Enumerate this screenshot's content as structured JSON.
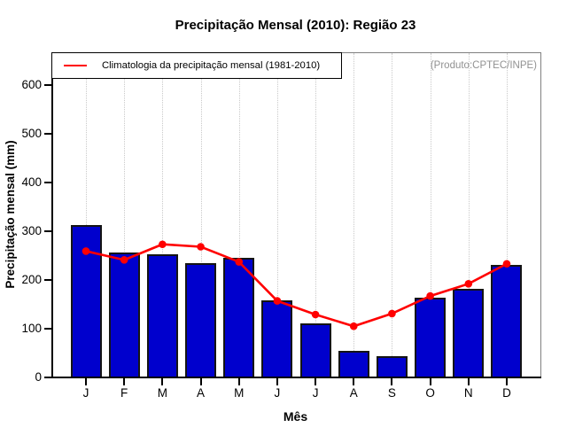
{
  "title": "Precipitação Mensal (2010): Região 23",
  "watermark": "(Produto:CPTEC/INPE)",
  "legend": {
    "label": "Climatologia da precipitação mensal (1981-2010)"
  },
  "chart_data": {
    "type": "bar",
    "title": "Precipitação Mensal (2010): Região 23",
    "xlabel": "Mês",
    "ylabel": "Precipitação mensal (mm)",
    "categories": [
      "J",
      "F",
      "M",
      "A",
      "M",
      "J",
      "J",
      "A",
      "S",
      "O",
      "N",
      "D"
    ],
    "series": [
      {
        "name": "Precipitação mensal 2010",
        "type": "bar",
        "color": "#0000CD",
        "values": [
          313,
          257,
          252,
          235,
          246,
          158,
          110,
          54,
          44,
          163,
          181,
          230
        ]
      },
      {
        "name": "Climatologia da precipitação mensal (1981-2010)",
        "type": "line",
        "color": "#FF0000",
        "values": [
          259,
          241,
          273,
          268,
          237,
          157,
          129,
          105,
          131,
          167,
          192,
          233
        ]
      }
    ],
    "yticks": [
      0,
      100,
      200,
      300,
      400,
      500,
      600
    ],
    "ylim": [
      0,
      665
    ],
    "grid": "vertical-dotted",
    "legend_position": "top-left",
    "bar_border_color": "#141414",
    "grid_color": "#c9c9c9"
  }
}
